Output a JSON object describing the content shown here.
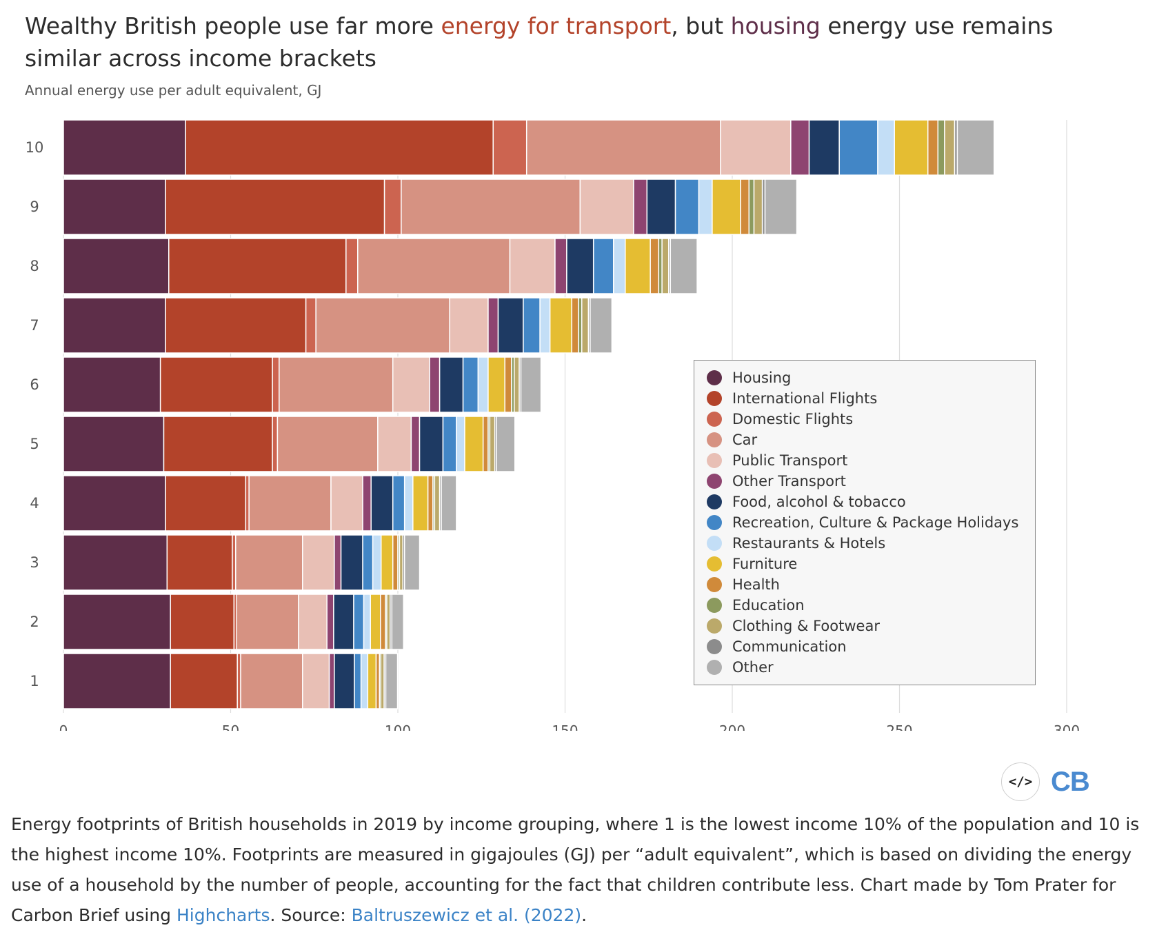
{
  "header": {
    "title_part1": "Wealthy British people use far more ",
    "title_highlight1": "energy for transport",
    "title_part2": ", but ",
    "title_highlight2": "housing",
    "title_part3": " energy use remains similar across income brackets",
    "subtitle": "Annual energy use per adult equivalent, GJ",
    "highlight1_color": "#b3432a",
    "highlight2_color": "#5e2e49"
  },
  "logo": {
    "embed_icon": "code-embed-icon",
    "embed_glyph": "</>",
    "brand": "CB"
  },
  "caption": {
    "part1": "Energy footprints of British households in 2019 by income grouping, where 1 is the lowest income 10% of the population and 10 is the highest income 10%. Footprints are measured in gigajoules (GJ) per “adult equivalent”, which is based on dividing the energy use of a household by the number of people, accounting for the fact that children contribute less. Chart made by Tom Prater for Carbon Brief using ",
    "link1": "Highcharts",
    "part2": ". Source: ",
    "link2": "Baltruszewicz et al. (2022)",
    "part3": "."
  },
  "chart_data": {
    "type": "bar",
    "orientation": "horizontal",
    "stacked": true,
    "title": "Wealthy British people use far more energy for transport, but housing energy use remains similar across income brackets",
    "subtitle": "Annual energy use per adult equivalent, GJ",
    "xlabel": "",
    "ylabel": "",
    "xlim": [
      0,
      300
    ],
    "xticks": [
      0,
      50,
      100,
      150,
      200,
      250,
      300
    ],
    "grid": "vertical",
    "legend_position": "right-inside",
    "categories": [
      "10",
      "9",
      "8",
      "7",
      "6",
      "5",
      "4",
      "3",
      "2",
      "1"
    ],
    "series": [
      {
        "name": "Housing",
        "color": "#5e2e49",
        "values": [
          36.5,
          30.5,
          31.5,
          30.5,
          29,
          30,
          30.5,
          31,
          32,
          32
        ]
      },
      {
        "name": "International Flights",
        "color": "#b3432a",
        "values": [
          92,
          65.5,
          53,
          42,
          33.5,
          32.5,
          24,
          19.5,
          19,
          20
        ]
      },
      {
        "name": "Domestic Flights",
        "color": "#cc6450",
        "values": [
          10,
          5,
          3.5,
          3,
          2,
          1.5,
          1,
          1,
          0.8,
          1
        ]
      },
      {
        "name": "Car",
        "color": "#d69282",
        "values": [
          58,
          53.5,
          45.5,
          40,
          34,
          30,
          24.5,
          20,
          18.5,
          18.5
        ]
      },
      {
        "name": "Public Transport",
        "color": "#e8bfb5",
        "values": [
          21,
          16,
          13.5,
          11.5,
          11,
          10,
          9.5,
          9.5,
          8.5,
          8
        ]
      },
      {
        "name": "Other Transport",
        "color": "#8e4470",
        "values": [
          5.5,
          4,
          3.5,
          3,
          3,
          2.5,
          2.5,
          2,
          2,
          1.5
        ]
      },
      {
        "name": "Food, alcohol & tobacco",
        "color": "#1e3a63",
        "values": [
          9,
          8.5,
          8,
          7.5,
          7,
          7,
          6.5,
          6.5,
          6,
          6
        ]
      },
      {
        "name": "Recreation, Culture & Package Holidays",
        "color": "#4286c6",
        "values": [
          11.5,
          7,
          6,
          5,
          4.5,
          4,
          3.5,
          3,
          3,
          2
        ]
      },
      {
        "name": "Restaurants & Hotels",
        "color": "#c3def6",
        "values": [
          5,
          4,
          3.5,
          3,
          3,
          2.5,
          2.5,
          2.5,
          2,
          2
        ]
      },
      {
        "name": "Furniture",
        "color": "#e5bd32",
        "values": [
          10,
          8.5,
          7.5,
          6.5,
          5,
          5.5,
          4.5,
          3.5,
          3,
          2.5
        ]
      },
      {
        "name": "Health",
        "color": "#d08a3a",
        "values": [
          3,
          2.5,
          2.5,
          2,
          2,
          1.5,
          1.5,
          1.5,
          1.5,
          1
        ]
      },
      {
        "name": "Education",
        "color": "#8c9a5e",
        "values": [
          2,
          1.5,
          1,
          1,
          0.8,
          0.5,
          0.5,
          0.5,
          0.4,
          0.4
        ]
      },
      {
        "name": "Clothing & Footwear",
        "color": "#bba96a",
        "values": [
          3,
          2.5,
          2,
          2,
          1.5,
          1.5,
          1.5,
          1,
          1,
          1
        ]
      },
      {
        "name": "Communication",
        "color": "#8c8c8c",
        "values": [
          0.8,
          0.8,
          0.5,
          0.5,
          0.5,
          0.5,
          0.5,
          0.5,
          0.5,
          0.5
        ]
      },
      {
        "name": "Other",
        "color": "#b0b0b0",
        "values": [
          11,
          9.5,
          8,
          6.5,
          6,
          5.5,
          4.5,
          4.5,
          3.5,
          3.5
        ]
      }
    ]
  }
}
